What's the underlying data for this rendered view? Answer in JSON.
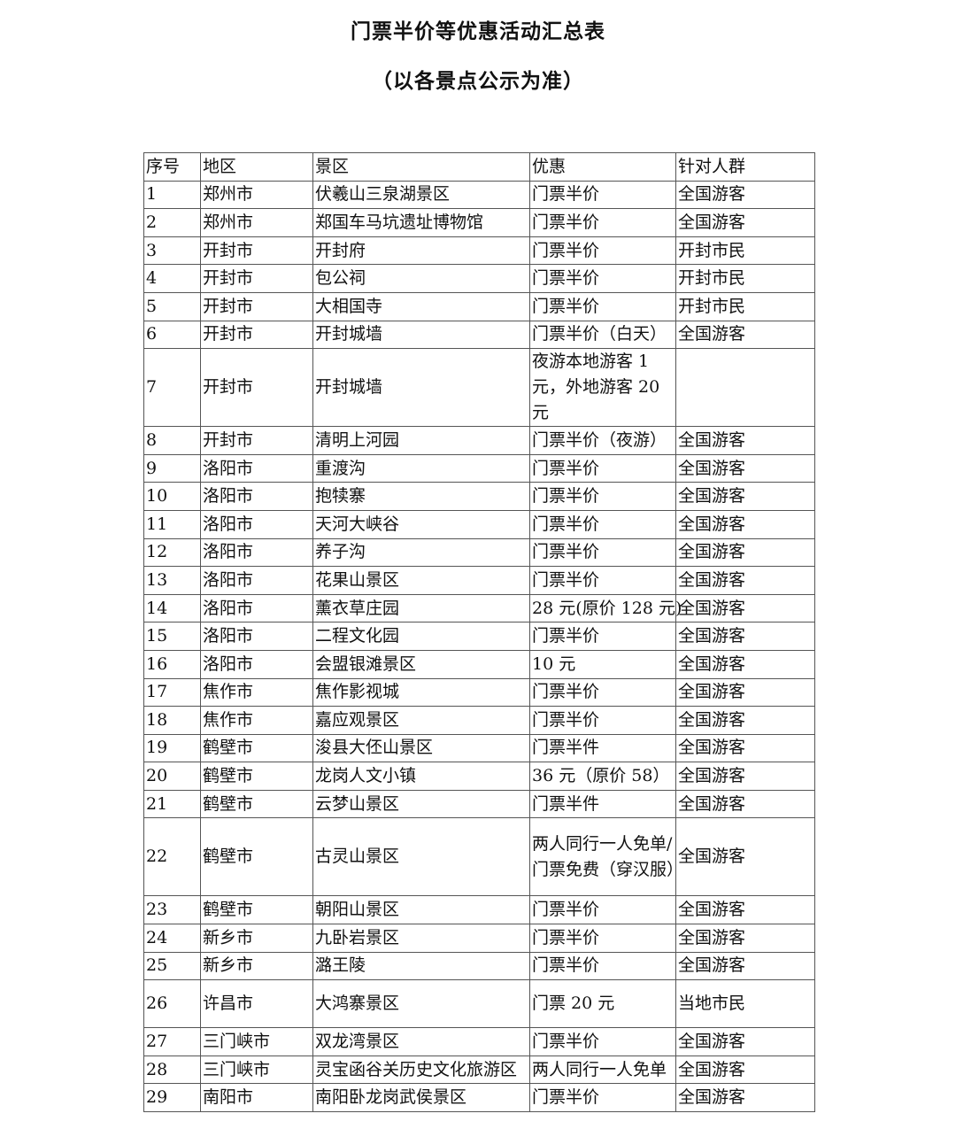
{
  "title": "门票半价等优惠活动汇总表",
  "subtitle": "（以各景点公示为准）",
  "headers": [
    "序号",
    "地区",
    "景区",
    "优惠",
    "针对人群"
  ],
  "rows": [
    [
      "1",
      "郑州市",
      "伏羲山三泉湖景区",
      "门票半价",
      "全国游客"
    ],
    [
      "2",
      "郑州市",
      "郑国车马坑遗址博物馆",
      "门票半价",
      "全国游客"
    ],
    [
      "3",
      "开封市",
      "开封府",
      "门票半价",
      "开封市民"
    ],
    [
      "4",
      "开封市",
      "包公祠",
      "门票半价",
      "开封市民"
    ],
    [
      "5",
      "开封市",
      "大相国寺",
      "门票半价",
      "开封市民"
    ],
    [
      "6",
      "开封市",
      "开封城墙",
      "门票半价（白天）",
      "全国游客"
    ],
    [
      "7",
      "开封市",
      "开封城墙",
      "夜游本地游客 1 元，外地游客 20 元",
      ""
    ],
    [
      "8",
      "开封市",
      "清明上河园",
      "门票半价（夜游）",
      "全国游客"
    ],
    [
      "9",
      "洛阳市",
      "重渡沟",
      "门票半价",
      "全国游客"
    ],
    [
      "10",
      "洛阳市",
      "抱犊寨",
      "门票半价",
      "全国游客"
    ],
    [
      "11",
      "洛阳市",
      "天河大峡谷",
      "门票半价",
      "全国游客"
    ],
    [
      "12",
      "洛阳市",
      "养子沟",
      "门票半价",
      "全国游客"
    ],
    [
      "13",
      "洛阳市",
      "花果山景区",
      "门票半价",
      "全国游客"
    ],
    [
      "14",
      "洛阳市",
      "薰衣草庄园",
      "28 元(原价 128 元)",
      "全国游客"
    ],
    [
      "15",
      "洛阳市",
      "二程文化园",
      "门票半价",
      "全国游客"
    ],
    [
      "16",
      "洛阳市",
      "会盟银滩景区",
      "10 元",
      "全国游客"
    ],
    [
      "17",
      "焦作市",
      "焦作影视城",
      "门票半价",
      "全国游客"
    ],
    [
      "18",
      "焦作市",
      "嘉应观景区",
      "门票半价",
      "全国游客"
    ],
    [
      "19",
      "鹤壁市",
      "浚县大伾山景区",
      "门票半件",
      "全国游客"
    ],
    [
      "20",
      "鹤壁市",
      "龙岗人文小镇",
      "36 元（原价 58）",
      "全国游客"
    ],
    [
      "21",
      "鹤壁市",
      "云梦山景区",
      "门票半件",
      "全国游客"
    ],
    [
      "22",
      "鹤壁市",
      "古灵山景区",
      "两人同行一人免单/门票免费（穿汉服）",
      "全国游客"
    ],
    [
      "23",
      "鹤壁市",
      "朝阳山景区",
      "门票半价",
      "全国游客"
    ],
    [
      "24",
      "新乡市",
      "九卧岩景区",
      "门票半价",
      "全国游客"
    ],
    [
      "25",
      "新乡市",
      "潞王陵",
      "门票半价",
      "全国游客"
    ],
    [
      "26",
      "许昌市",
      "大鸿寨景区",
      "门票 20 元",
      "当地市民"
    ],
    [
      "27",
      "三门峡市",
      "双龙湾景区",
      "门票半价",
      "全国游客"
    ],
    [
      "28",
      "三门峡市",
      "灵宝函谷关历史文化旅游区",
      "两人同行一人免单",
      "全国游客"
    ],
    [
      "29",
      "南阳市",
      "南阳卧龙岗武侯景区",
      "门票半价",
      "全国游客"
    ]
  ]
}
